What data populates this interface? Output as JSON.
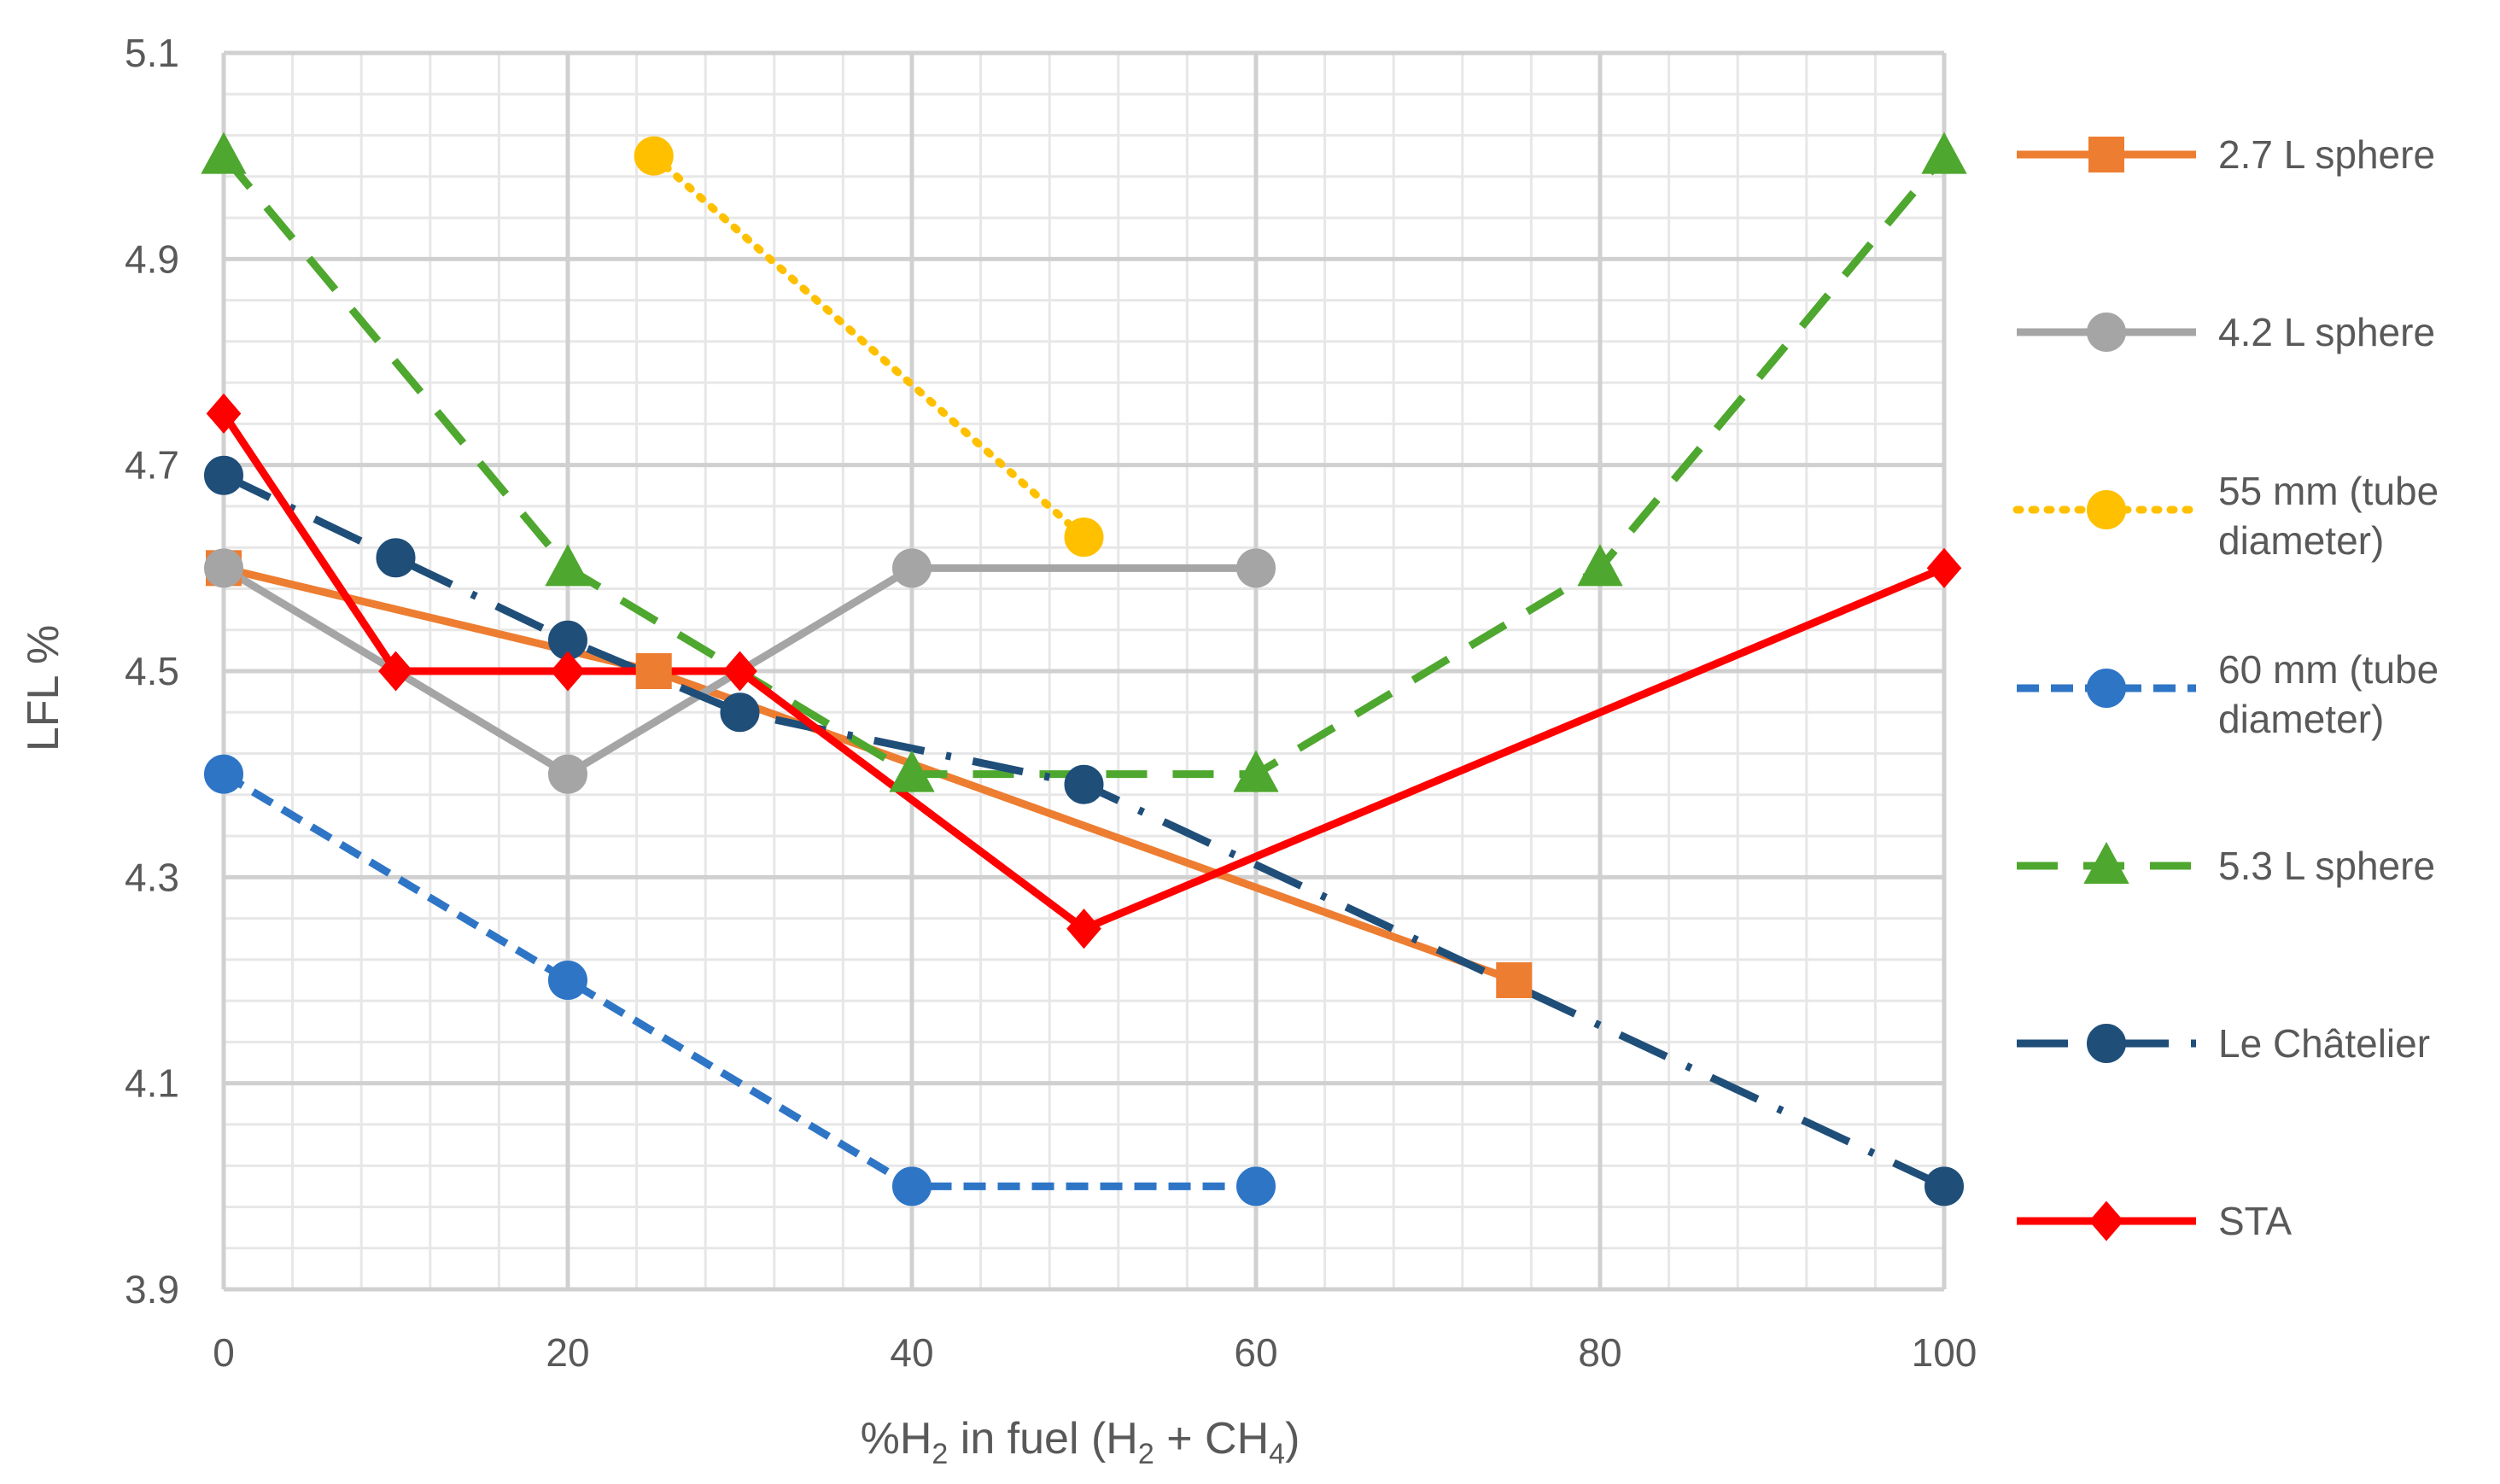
{
  "chart_data": {
    "type": "line",
    "title": "",
    "xlabel": "%H2 in fuel (H2 + CH4)",
    "xlabel_parts": [
      {
        "text": "%H",
        "sub": false
      },
      {
        "text": "2",
        "sub": true
      },
      {
        "text": " in fuel (H",
        "sub": false
      },
      {
        "text": "2",
        "sub": true
      },
      {
        "text": " + CH",
        "sub": false
      },
      {
        "text": "4",
        "sub": true
      },
      {
        "text": ")",
        "sub": false
      }
    ],
    "ylabel": "LFL %",
    "xlim": [
      0,
      100
    ],
    "ylim": [
      3.9,
      5.1
    ],
    "xticks": [
      "0",
      "20",
      "40",
      "60",
      "80",
      "100"
    ],
    "yticks": [
      "3.9",
      "4.1",
      "4.3",
      "4.5",
      "4.7",
      "4.9",
      "5.1"
    ],
    "grid": true,
    "legend_position": "right",
    "series": [
      {
        "name": "2.7 L sphere",
        "label_lines": [
          "2.7 L sphere"
        ],
        "color": "#ED7D31",
        "dash": "solid",
        "marker": "square",
        "x": [
          0,
          25,
          75
        ],
        "y": [
          4.6,
          4.5,
          4.2
        ]
      },
      {
        "name": "4.2 L sphere",
        "label_lines": [
          "4.2 L sphere"
        ],
        "color": "#A5A5A5",
        "dash": "solid",
        "marker": "circle",
        "x": [
          0,
          20,
          40,
          60
        ],
        "y": [
          4.6,
          4.4,
          4.6,
          4.6
        ]
      },
      {
        "name": "55 mm (tube diameter)",
        "label_lines": [
          "55 mm (tube",
          "diameter)"
        ],
        "color": "#FFC000",
        "dash": "dot",
        "marker": "circle",
        "x": [
          25,
          50
        ],
        "y": [
          5.0,
          4.63
        ]
      },
      {
        "name": "60 mm (tube diameter)",
        "label_lines": [
          "60 mm (tube",
          "diameter)"
        ],
        "color": "#2E75C6",
        "dash": "dash",
        "marker": "circle",
        "x": [
          0,
          20,
          40,
          60
        ],
        "y": [
          4.4,
          4.2,
          4.0,
          4.0
        ]
      },
      {
        "name": "5.3 L sphere",
        "label_lines": [
          "5.3 L sphere"
        ],
        "color": "#4EA72E",
        "dash": "longdash",
        "marker": "triangle",
        "x": [
          0,
          20,
          40,
          60,
          80,
          100
        ],
        "y": [
          5.0,
          4.6,
          4.4,
          4.4,
          4.6,
          5.0
        ]
      },
      {
        "name": "Le Châtelier",
        "label_lines": [
          "Le Châtelier"
        ],
        "color": "#1F4E79",
        "dash": "dashdot",
        "marker": "circle",
        "x": [
          0,
          10,
          20,
          30,
          50,
          100
        ],
        "y": [
          4.69,
          4.61,
          4.53,
          4.46,
          4.39,
          4.0
        ]
      },
      {
        "name": "STA",
        "label_lines": [
          "STA"
        ],
        "color": "#FF0000",
        "dash": "solid",
        "marker": "diamond",
        "x": [
          0,
          10,
          20,
          30,
          50,
          100
        ],
        "y": [
          4.75,
          4.5,
          4.5,
          4.5,
          4.25,
          4.6
        ]
      }
    ]
  }
}
